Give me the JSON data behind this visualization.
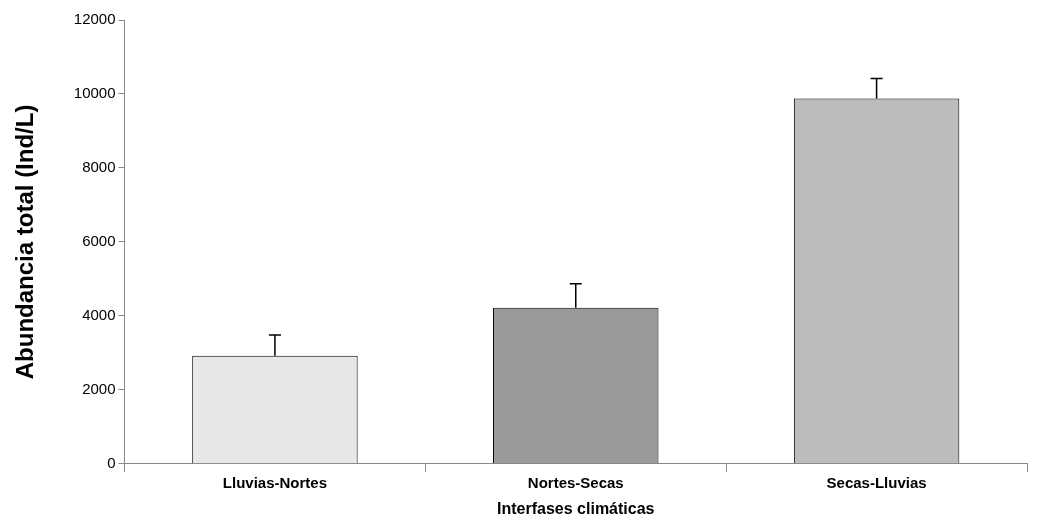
{
  "chart_data": {
    "type": "bar",
    "xlabel": "Interfases climáticas",
    "ylabel": "Abundancia total (Ind/L)",
    "categories": [
      "Lluvias-Nortes",
      "Nortes-Secas",
      "Secas-Lluvias"
    ],
    "values": [
      2920,
      4220,
      9880
    ],
    "colors": [
      "#e8e8e8",
      "#9a9a9a",
      "#bcbcbc"
    ],
    "errors": [
      [
        2920,
        3480
      ],
      [
        4220,
        4870
      ],
      [
        9880,
        10420
      ]
    ],
    "ylim": [
      0,
      12000
    ],
    "yticks": [
      0,
      2000,
      4000,
      6000,
      8000,
      10000,
      12000
    ],
    "grid": false,
    "legend": false
  }
}
